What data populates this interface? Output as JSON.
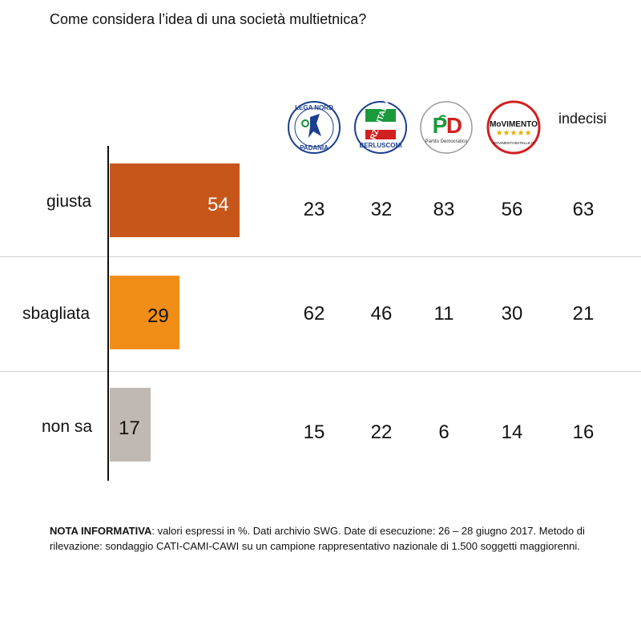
{
  "chart_data": {
    "type": "bar",
    "orientation": "horizontal",
    "title": "Come considera l’idea di una società multietnica?",
    "categories": [
      "giusta",
      "sbagliata",
      "non sa"
    ],
    "values": [
      54,
      29,
      17
    ],
    "bar_colors": [
      "#c6561a",
      "#f18e17",
      "#c0b8b2"
    ],
    "xlim": [
      0,
      100
    ],
    "table": {
      "columns": [
        "Lega Nord Padania",
        "Forza Italia Berlusconi",
        "Partito Democratico",
        "MoVimento 5 Stelle",
        "indecisi"
      ],
      "rows": [
        [
          23,
          32,
          83,
          56,
          63
        ],
        [
          62,
          46,
          11,
          30,
          21
        ],
        [
          15,
          22,
          6,
          14,
          16
        ]
      ]
    }
  },
  "logos": {
    "lega": {
      "name": "lega-nord-logo",
      "top": "LEGA NORD",
      "bottom": "PADANIA"
    },
    "forza": {
      "name": "forza-italia-logo",
      "top": "FORZA ITALIA",
      "bottom": "BERLUSCONI"
    },
    "pd": {
      "name": "partito-democratico-logo",
      "letters": "PD",
      "bottom": "Partito Democratico"
    },
    "m5s": {
      "name": "movimento-5-stelle-logo",
      "top": "MoVIMENTO",
      "bottom": "MOVIMENTO5STELLE.IT"
    }
  },
  "header": {
    "indecisi": "indecisi"
  },
  "note": {
    "bold": "NOTA INFORMATIVA",
    "text": ": valori espressi in %. Dati archivio SWG. Date di esecuzione: 26 – 28 giugno 2017. Metodo di rilevazione: sondaggio CATI-CAMI-CAWI su un campione rappresentativo nazionale di 1.500 soggetti maggiorenni."
  }
}
